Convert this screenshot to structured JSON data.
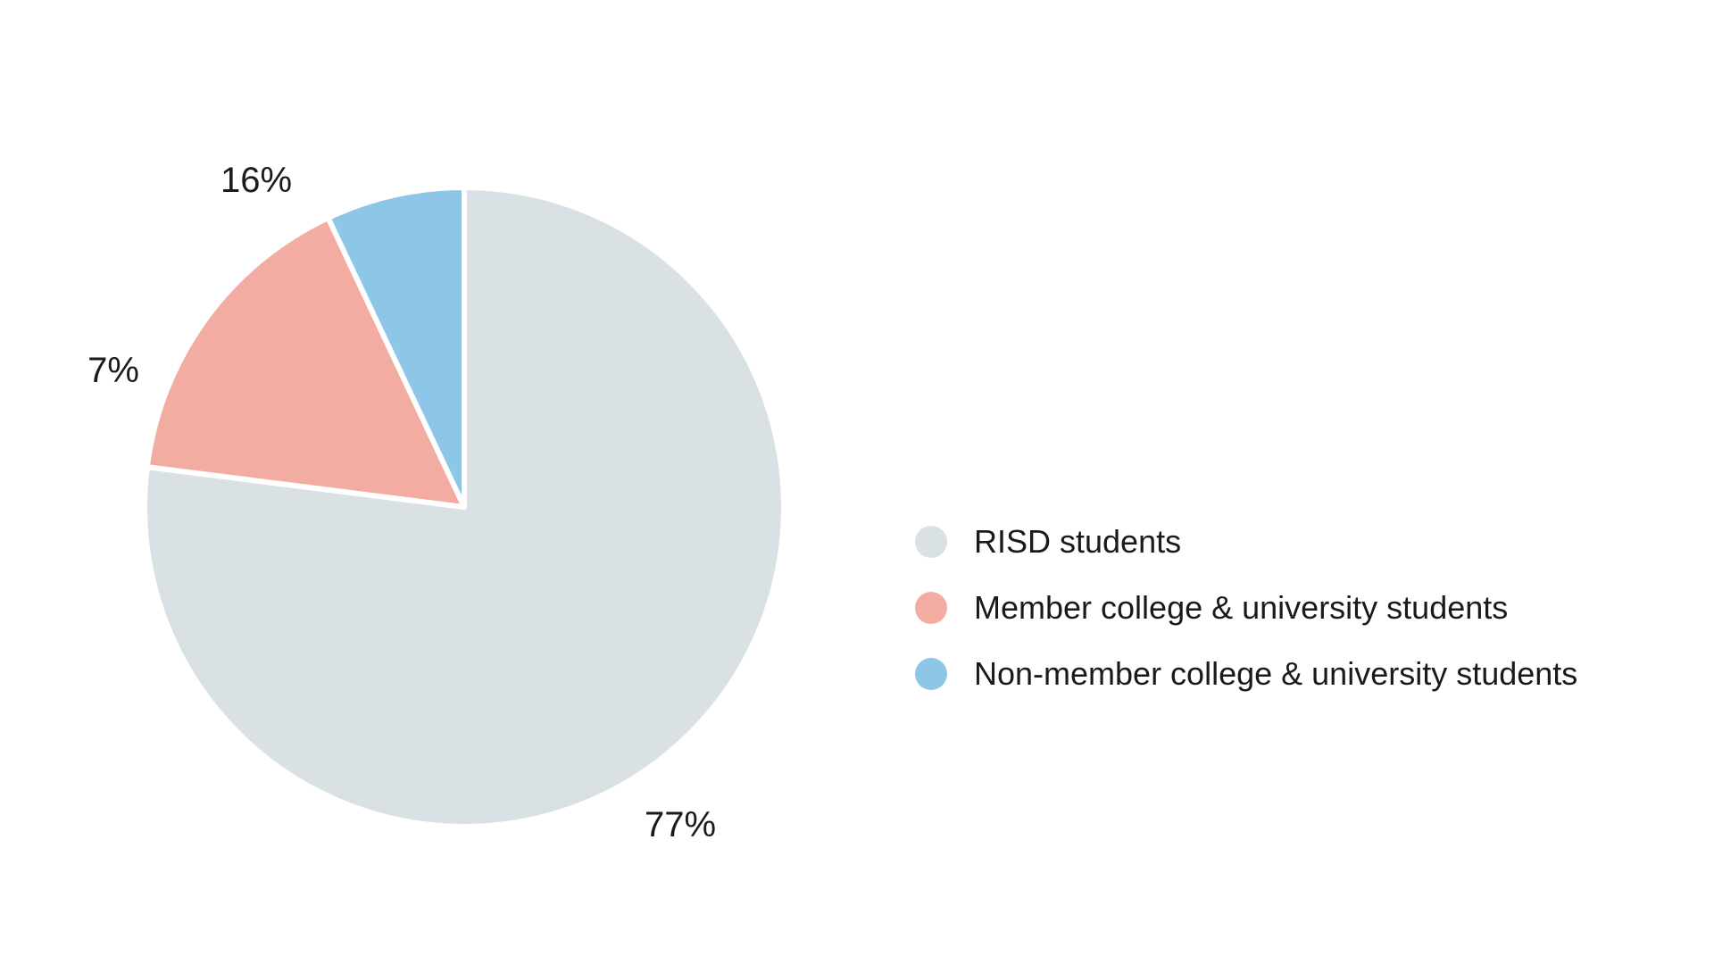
{
  "chart_data": {
    "type": "pie",
    "title": "",
    "slices": [
      {
        "name": "RISD students",
        "value": 77,
        "label": "77%",
        "color": "#d9e1e5"
      },
      {
        "name": "Member college & university students",
        "value": 16,
        "label": "16%",
        "color": "#f2aca1"
      },
      {
        "name": "Non-member college & university students",
        "value": 7,
        "label": "7%",
        "color": "#8dc6e7"
      }
    ],
    "legend": {
      "placement": "right",
      "items": [
        {
          "label": "RISD students",
          "color": "#d9e1e5"
        },
        {
          "label": "Member college & university students",
          "color": "#f2aca1"
        },
        {
          "label": "Non-member college & university students",
          "color": "#8dc6e7"
        }
      ]
    },
    "start_angle": "12 o'clock",
    "direction": "clockwise"
  }
}
